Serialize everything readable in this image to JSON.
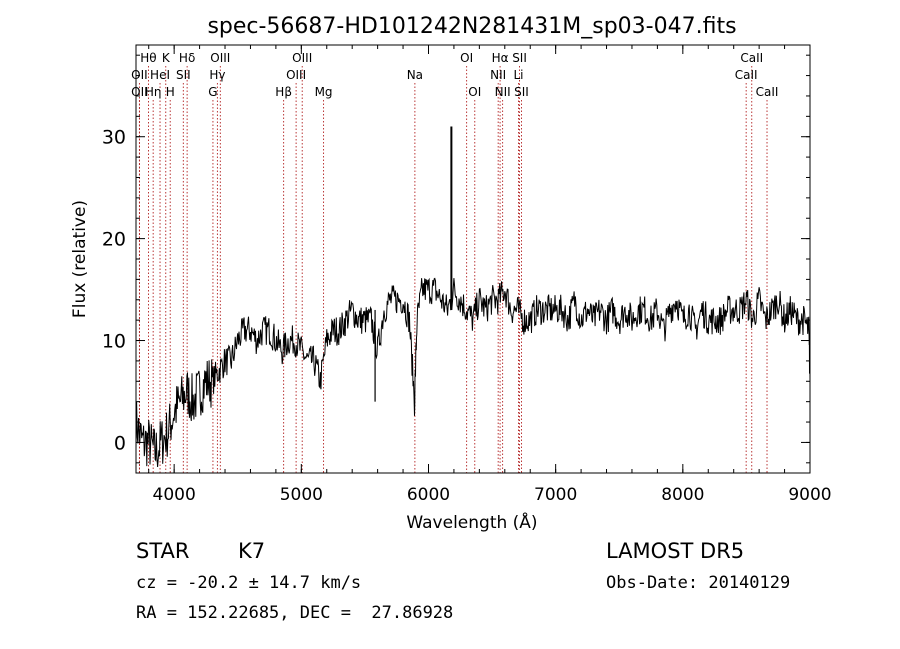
{
  "chart_data": {
    "type": "line",
    "title": "spec-56687-HD101242N281431M_sp03-047.fits",
    "xlabel": "Wavelength (Å)",
    "ylabel": "Flux (relative)",
    "xlim": [
      3700,
      9000
    ],
    "ylim": [
      -3,
      39
    ],
    "xticks": [
      4000,
      5000,
      6000,
      7000,
      8000,
      9000
    ],
    "yticks": [
      0,
      10,
      20,
      30
    ],
    "grid": false,
    "line_color": "#000000",
    "marker_color": "#b22222",
    "line_markers": [
      {
        "label": "Hθ",
        "x": 3798,
        "row": 1
      },
      {
        "label": "OII",
        "x": 3727,
        "row": 2
      },
      {
        "label": "OII",
        "x": 3727,
        "row": 3
      },
      {
        "label": "HeI",
        "x": 3889,
        "row": 2
      },
      {
        "label": "Hη",
        "x": 3835,
        "row": 3
      },
      {
        "label": "K",
        "x": 3934,
        "row": 1
      },
      {
        "label": "H",
        "x": 3969,
        "row": 3
      },
      {
        "label": "Hδ",
        "x": 4102,
        "row": 1
      },
      {
        "label": "SII",
        "x": 4072,
        "row": 2
      },
      {
        "label": "OIII",
        "x": 4363,
        "row": 1
      },
      {
        "label": "Hγ",
        "x": 4340,
        "row": 2
      },
      {
        "label": "G",
        "x": 4305,
        "row": 3
      },
      {
        "label": "OIII",
        "x": 5007,
        "row": 1
      },
      {
        "label": "OIII",
        "x": 4959,
        "row": 2
      },
      {
        "label": "Hβ",
        "x": 4861,
        "row": 3
      },
      {
        "label": "Mg",
        "x": 5175,
        "row": 3
      },
      {
        "label": "Na",
        "x": 5893,
        "row": 2
      },
      {
        "label": "OI",
        "x": 6300,
        "row": 1
      },
      {
        "label": "OI",
        "x": 6364,
        "row": 3
      },
      {
        "label": "Hα",
        "x": 6563,
        "row": 1
      },
      {
        "label": "SII",
        "x": 6716,
        "row": 1
      },
      {
        "label": "NII",
        "x": 6548,
        "row": 2
      },
      {
        "label": "Li",
        "x": 6708,
        "row": 2
      },
      {
        "label": "NII",
        "x": 6583,
        "row": 3
      },
      {
        "label": "SII",
        "x": 6731,
        "row": 3
      },
      {
        "label": "CaII",
        "x": 8542,
        "row": 1
      },
      {
        "label": "CaII",
        "x": 8498,
        "row": 2
      },
      {
        "label": "CaII",
        "x": 8662,
        "row": 3
      }
    ],
    "series": [
      {
        "x": [
          3700,
          3750,
          3800,
          3850,
          3900,
          3950,
          4000,
          4050,
          4100,
          4150,
          4200,
          4250,
          4300,
          4350,
          4400,
          4450,
          4500,
          4550,
          4600,
          4650,
          4700,
          4750,
          4800,
          4850,
          4900,
          4950,
          5000,
          5050,
          5100,
          5150,
          5200,
          5250,
          5300,
          5350,
          5400,
          5450,
          5500,
          5550,
          5600,
          5650,
          5700,
          5750,
          5800,
          5850,
          5890,
          5910,
          5950,
          6000,
          6050,
          6100,
          6150,
          6200,
          6250,
          6300,
          6350,
          6400,
          6450,
          6500,
          6550,
          6600,
          6650,
          6700,
          6750,
          6800,
          6850,
          6900,
          6950,
          7000,
          7050,
          7100,
          7150,
          7200,
          7250,
          7300,
          7350,
          7400,
          7450,
          7500,
          7550,
          7600,
          7650,
          7700,
          7750,
          7800,
          7850,
          7900,
          7950,
          8000,
          8050,
          8100,
          8150,
          8200,
          8250,
          8300,
          8350,
          8400,
          8450,
          8500,
          8550,
          8600,
          8650,
          8700,
          8750,
          8800,
          8850,
          8900,
          8950,
          8990,
          9000
        ],
        "y": [
          2,
          0,
          0,
          -1,
          0,
          1,
          3,
          4,
          5,
          4,
          5,
          6,
          6,
          7,
          8,
          8,
          10,
          11,
          11,
          10,
          11,
          11,
          10,
          9,
          10,
          10,
          9,
          8,
          8,
          6,
          10,
          11,
          11,
          12,
          13,
          12,
          12,
          12,
          9,
          13,
          14,
          14,
          14,
          12,
          4,
          12,
          15,
          15,
          15,
          14,
          13,
          15,
          14,
          13,
          12,
          14,
          13,
          14,
          14,
          15,
          13,
          13,
          12,
          12,
          13,
          13,
          13,
          13,
          13,
          12,
          14,
          12,
          13,
          12,
          13,
          12,
          13,
          12,
          13,
          12,
          13,
          13,
          12,
          13,
          11,
          13,
          14,
          12,
          13,
          11,
          13,
          12,
          12,
          12,
          13,
          13,
          13,
          14,
          12,
          14,
          12,
          13,
          14,
          12,
          13,
          12,
          12,
          11,
          6
        ],
        "features": [
          {
            "x": 5580,
            "y": 4
          },
          {
            "x": 6180,
            "y": 31
          }
        ]
      }
    ]
  },
  "info": {
    "class": "STAR",
    "subclass": "K7",
    "survey": "LAMOST DR5",
    "cz": "cz = -20.2 ± 14.7 km/s",
    "obs_date": "Obs-Date: 20140129",
    "radec": "RA = 152.22685, DEC =  27.86928"
  }
}
